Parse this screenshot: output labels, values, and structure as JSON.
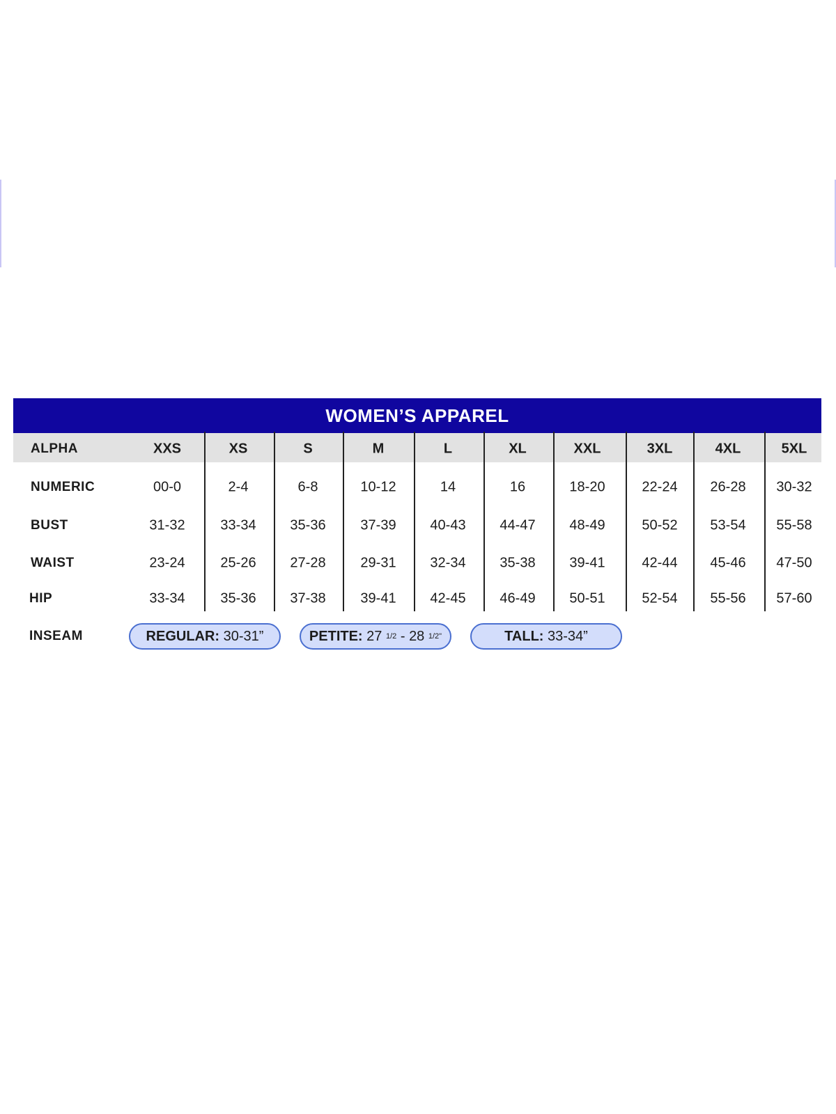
{
  "title": "WOMEN’S APPAREL",
  "columns": [
    "XXS",
    "XS",
    "S",
    "M",
    "L",
    "XL",
    "XXL",
    "3XL",
    "4XL",
    "5XL"
  ],
  "rows": [
    {
      "label": "ALPHA",
      "values": [
        "XXS",
        "XS",
        "S",
        "M",
        "L",
        "XL",
        "XXL",
        "3XL",
        "4XL",
        "5XL"
      ]
    },
    {
      "label": "NUMERIC",
      "values": [
        "00-0",
        "2-4",
        "6-8",
        "10-12",
        "14",
        "16",
        "18-20",
        "22-24",
        "26-28",
        "30-32"
      ]
    },
    {
      "label": "BUST",
      "values": [
        "31-32",
        "33-34",
        "35-36",
        "37-39",
        "40-43",
        "44-47",
        "48-49",
        "50-52",
        "53-54",
        "55-58"
      ]
    },
    {
      "label": "WAIST",
      "values": [
        "23-24",
        "25-26",
        "27-28",
        "29-31",
        "32-34",
        "35-38",
        "39-41",
        "42-44",
        "45-46",
        "47-50"
      ]
    },
    {
      "label": "HIP",
      "values": [
        "33-34",
        "35-36",
        "37-38",
        "39-41",
        "42-45",
        "46-49",
        "50-51",
        "52-54",
        "55-56",
        "57-60"
      ]
    }
  ],
  "inseam": {
    "label": "INSEAM",
    "regular": {
      "name": "REGULAR:",
      "value": "30-31”"
    },
    "petite": {
      "name": "PETITE:",
      "v1": "27",
      "f1": "1/2",
      "sep": "-",
      "v2": "28",
      "f2": "1/2\""
    },
    "tall": {
      "name": "TALL:",
      "value": "33-34”"
    }
  },
  "colors": {
    "header_bg": "#10069f",
    "alpha_row_bg": "#e2e2e2",
    "pill_bg": "#d3ddfb",
    "pill_border": "#4a6fd0"
  }
}
